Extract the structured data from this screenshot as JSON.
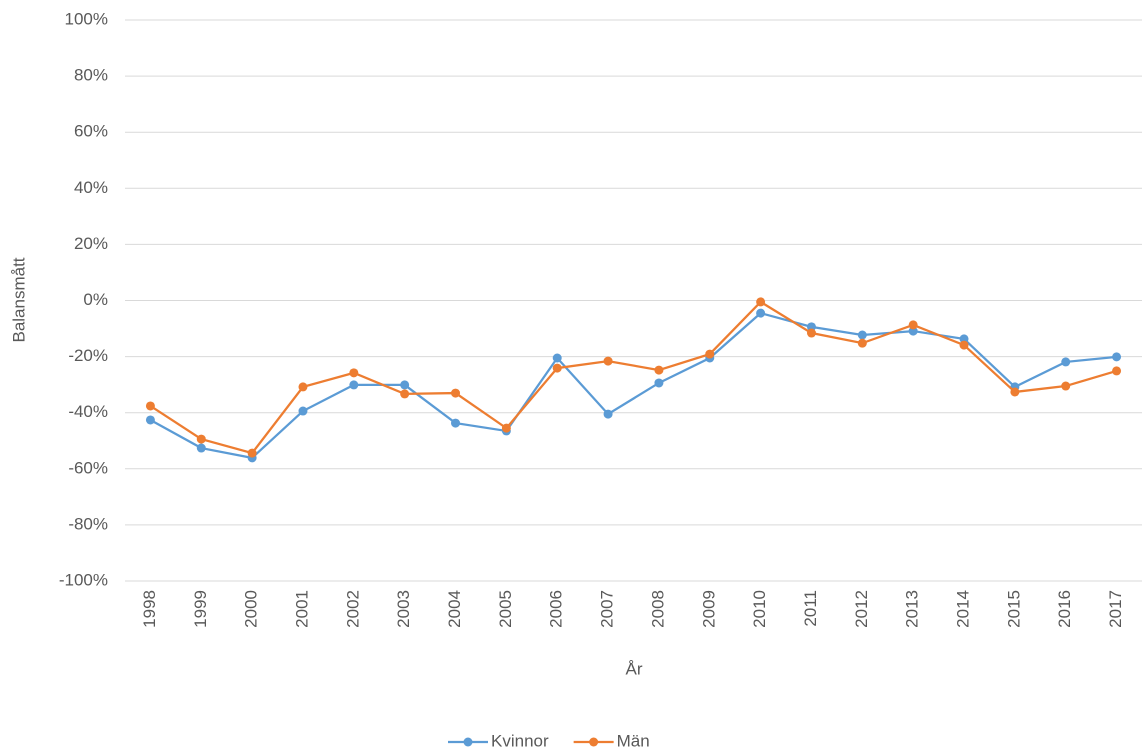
{
  "chart_data": {
    "type": "line",
    "x_label": "År",
    "y_label": "Balansmått",
    "categories": [
      "1998",
      "1999",
      "2000",
      "2001",
      "2002",
      "2003",
      "2004",
      "2005",
      "2006",
      "2007",
      "2008",
      "2009",
      "2010",
      "2011",
      "2012",
      "2013",
      "2014",
      "2015",
      "2016",
      "2017"
    ],
    "series": [
      {
        "name": "Kvinnor",
        "color": "#5b9bd5",
        "values": [
          -42.6,
          -52.6,
          -56.1,
          -39.4,
          -30.1,
          -30.1,
          -43.7,
          -46.5,
          -20.5,
          -40.5,
          -29.4,
          -20.5,
          -4.5,
          -9.4,
          -12.3,
          -10.9,
          -13.7,
          -30.8,
          -21.9,
          -20.1
        ]
      },
      {
        "name": "Män",
        "color": "#ed7d31",
        "values": [
          -37.6,
          -49.4,
          -54.4,
          -30.8,
          -25.8,
          -33.3,
          -33.0,
          -45.5,
          -24.1,
          -21.6,
          -24.8,
          -19.1,
          -0.5,
          -11.6,
          -15.2,
          -8.7,
          -15.9,
          -32.6,
          -30.5,
          -25.1
        ]
      }
    ],
    "ylim": [
      -100,
      100
    ],
    "yticks": [
      {
        "value": -100,
        "label": "-100%"
      },
      {
        "value": -80,
        "label": "-80%"
      },
      {
        "value": -60,
        "label": "-60%"
      },
      {
        "value": -40,
        "label": "-40%"
      },
      {
        "value": -20,
        "label": "-20%"
      },
      {
        "value": 0,
        "label": "0%"
      },
      {
        "value": 20,
        "label": "20%"
      },
      {
        "value": 40,
        "label": "40%"
      },
      {
        "value": 60,
        "label": "60%"
      },
      {
        "value": 80,
        "label": "80%"
      },
      {
        "value": 100,
        "label": "100%"
      }
    ],
    "grid": true,
    "legend": "bottom"
  }
}
